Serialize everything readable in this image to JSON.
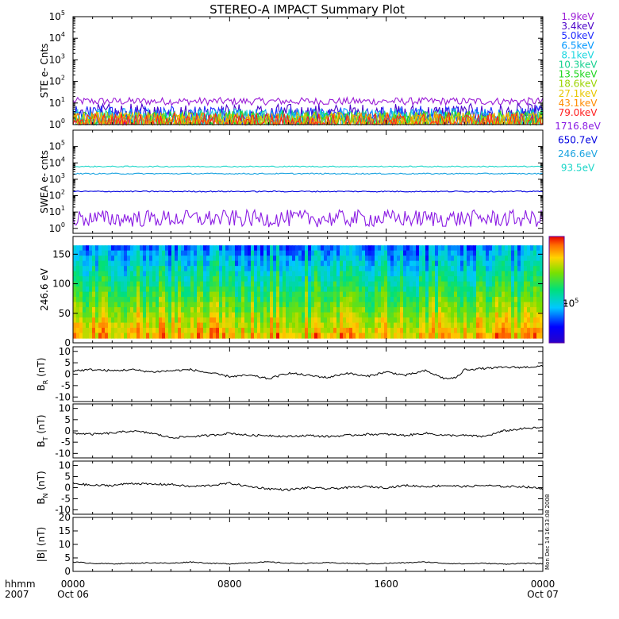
{
  "title": "STEREO-A IMPACT Summary Plot",
  "footer": {
    "unit_label": "hhmm",
    "year_label": "2007",
    "x_ticks": [
      {
        "time": "0000",
        "date": "Oct 06"
      },
      {
        "time": "0800",
        "date": ""
      },
      {
        "time": "1600",
        "date": ""
      },
      {
        "time": "0000",
        "date": "Oct 07"
      }
    ],
    "side_note": "Mon Dec 14 16:33:08 2008"
  },
  "colors": {
    "background": "#ffffff",
    "axis": "#000000",
    "b_trace": "#000000"
  },
  "chart_data": [
    {
      "id": "ste",
      "type": "line",
      "ylabel": "STE e- Cnts",
      "yscale": "log",
      "ylim": [
        1,
        100000
      ],
      "xlim_hours": [
        0,
        24
      ],
      "y_tick_values": [
        1,
        10,
        100,
        1000,
        10000,
        100000
      ],
      "y_tick_labels": [
        [
          "10",
          "0"
        ],
        [
          "10",
          "1"
        ],
        [
          "10",
          "2"
        ],
        [
          "10",
          "3"
        ],
        [
          "10",
          "4"
        ],
        [
          "10",
          "5"
        ]
      ],
      "series": [
        {
          "name": "1.9keV",
          "color": "#9a1bd6",
          "level": 12
        },
        {
          "name": "3.4keV",
          "color": "#4a00c8",
          "level": 2.8
        },
        {
          "name": "5.0keV",
          "color": "#1f2bff",
          "level": 2.3
        },
        {
          "name": "6.5keV",
          "color": "#0097ff",
          "level": 1.8
        },
        {
          "name": "8.1keV",
          "color": "#1ad6e0",
          "level": 1.6
        },
        {
          "name": "10.3keV",
          "color": "#16d18f",
          "level": 1.4
        },
        {
          "name": "13.5keV",
          "color": "#1ed61e",
          "level": 1.3
        },
        {
          "name": "18.6keV",
          "color": "#9bd400",
          "level": 1.2
        },
        {
          "name": "27.1keV",
          "color": "#e8c800",
          "level": 1.15
        },
        {
          "name": "43.1keV",
          "color": "#ff8c00",
          "level": 1.1
        },
        {
          "name": "79.0keV",
          "color": "#ff2020",
          "level": 1.05
        }
      ]
    },
    {
      "id": "swea",
      "type": "line",
      "ylabel": "SWEA e- cnts",
      "yscale": "log",
      "ylim": [
        0.5,
        1000000
      ],
      "xlim_hours": [
        0,
        24
      ],
      "y_tick_values": [
        1,
        10,
        100,
        1000,
        10000,
        100000
      ],
      "y_tick_labels": [
        [
          "10",
          "0"
        ],
        [
          "10",
          "1"
        ],
        [
          "10",
          "2"
        ],
        [
          "10",
          "3"
        ],
        [
          "10",
          "4"
        ],
        [
          "10",
          "5"
        ]
      ],
      "series": [
        {
          "name": "1716.8eV",
          "color": "#8b1be3",
          "level": 4
        },
        {
          "name": "650.7eV",
          "color": "#0000e0",
          "level": 180
        },
        {
          "name": "246.6eV",
          "color": "#1aa3e0",
          "level": 2200
        },
        {
          "name": "93.5eV",
          "color": "#1ad6c8",
          "level": 6000
        }
      ]
    },
    {
      "id": "pitch",
      "type": "heatmap",
      "ylabel": "246.6 eV",
      "ylim": [
        0,
        180
      ],
      "xlim_hours": [
        0,
        24
      ],
      "y_tick_values": [
        0,
        50,
        100,
        150
      ],
      "y_tick_labels": [
        "0",
        "50",
        "100",
        "150"
      ],
      "colorbar": {
        "tick_base": "10",
        "tick_exp": "5",
        "tick_fraction": 0.37
      }
    },
    {
      "id": "br",
      "type": "line",
      "ylabel_main": "B",
      "ylabel_sub": "R",
      "ylabel_unit": "(nT)",
      "ylim": [
        -12,
        12
      ],
      "xlim_hours": [
        0,
        24
      ],
      "y_tick_values": [
        -10,
        -5,
        0,
        5,
        10
      ],
      "y_tick_labels": [
        "-10",
        "-5",
        "0",
        "5",
        "10"
      ],
      "series": [
        {
          "name": "",
          "color": "#000000",
          "x": [
            0,
            1,
            2,
            3,
            4,
            5,
            6,
            7,
            8,
            9,
            10,
            11,
            12,
            13,
            14,
            15,
            16,
            17,
            18,
            19,
            19.6,
            20,
            21,
            22,
            23,
            24
          ],
          "y": [
            1.5,
            2,
            1.5,
            2,
            1,
            1.5,
            2,
            0.5,
            -1,
            -0.5,
            -2,
            0.5,
            -0.5,
            -1.5,
            0.5,
            -1,
            1,
            -0.5,
            1.5,
            -2,
            -1.5,
            2,
            2.5,
            3,
            3,
            3.5
          ]
        }
      ]
    },
    {
      "id": "bt",
      "type": "line",
      "ylabel_main": "B",
      "ylabel_sub": "T",
      "ylabel_unit": "(nT)",
      "ylim": [
        -12,
        12
      ],
      "xlim_hours": [
        0,
        24
      ],
      "y_tick_values": [
        -10,
        -5,
        0,
        5,
        10
      ],
      "y_tick_labels": [
        "-10",
        "-5",
        "0",
        "5",
        "10"
      ],
      "series": [
        {
          "name": "",
          "color": "#000000",
          "x": [
            0,
            1,
            2,
            3,
            4,
            5,
            6,
            7,
            8,
            9,
            10,
            11,
            12,
            13,
            14,
            15,
            16,
            17,
            18,
            19,
            20,
            21,
            22,
            23,
            24
          ],
          "y": [
            -1,
            -1.5,
            -1,
            0,
            -1,
            -3,
            -2.5,
            -2,
            -1,
            -2,
            -2,
            -2.5,
            -2,
            -2.5,
            -2,
            -1.5,
            -1.5,
            -2,
            -1,
            -2,
            -2,
            -2.5,
            0,
            1,
            1.5
          ]
        }
      ]
    },
    {
      "id": "bn",
      "type": "line",
      "ylabel_main": "B",
      "ylabel_sub": "N",
      "ylabel_unit": "(nT)",
      "ylim": [
        -12,
        12
      ],
      "xlim_hours": [
        0,
        24
      ],
      "y_tick_values": [
        -10,
        -5,
        0,
        5,
        10
      ],
      "y_tick_labels": [
        "-10",
        "-5",
        "0",
        "5",
        "10"
      ],
      "series": [
        {
          "name": "",
          "color": "#000000",
          "x": [
            0,
            1,
            2,
            3,
            4,
            5,
            6,
            7,
            8,
            9,
            10,
            11,
            12,
            13,
            14,
            15,
            16,
            17,
            18,
            19,
            20,
            21,
            22,
            23,
            24
          ],
          "y": [
            2,
            1,
            1,
            2,
            1.5,
            1.5,
            0.5,
            1,
            2,
            0.5,
            -0.5,
            -1,
            0,
            -0.5,
            0,
            0.5,
            0,
            1,
            0.5,
            1,
            0.5,
            1,
            0.5,
            0.5,
            -0.5
          ]
        }
      ]
    },
    {
      "id": "bmag",
      "type": "line",
      "ylabel_main": "|B|",
      "ylabel_sub": "",
      "ylabel_unit": "(nT)",
      "ylim": [
        0,
        20
      ],
      "xlim_hours": [
        0,
        24
      ],
      "y_tick_values": [
        0,
        5,
        10,
        15,
        20
      ],
      "y_tick_labels": [
        "0",
        "5",
        "10",
        "15",
        "20"
      ],
      "series": [
        {
          "name": "",
          "color": "#000000",
          "x": [
            0,
            1,
            2,
            3,
            4,
            5,
            6,
            7,
            8,
            9,
            10,
            11,
            12,
            13,
            14,
            15,
            16,
            17,
            18,
            19,
            20,
            21,
            22,
            23,
            24
          ],
          "y": [
            3.5,
            3,
            2.8,
            3,
            3.2,
            3,
            3.5,
            3,
            2.8,
            3.2,
            3.5,
            3,
            3,
            3.2,
            3,
            2.8,
            3,
            3.2,
            3.5,
            3,
            2.8,
            3,
            2.7,
            3,
            2.8
          ]
        }
      ]
    }
  ]
}
